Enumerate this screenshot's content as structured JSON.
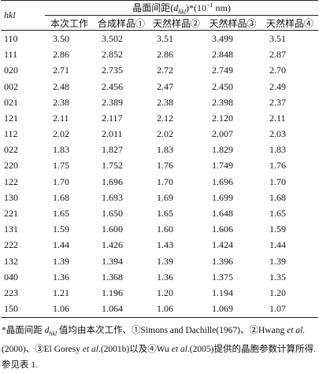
{
  "header": {
    "hkl": "hkl",
    "group": {
      "before": "晶面间距(",
      "symbol": "d",
      "sub": "hkl",
      "after": ")*(10",
      "sup": "−1",
      "unit": " nm)"
    },
    "columns": [
      "本次工作",
      "合成样品①",
      "天然样品②",
      "天然样品③",
      "天然样品④"
    ]
  },
  "table": {
    "rows": [
      [
        "110",
        "3.50",
        "3.502",
        "3.51",
        "3.499",
        "3.51"
      ],
      [
        "111",
        "2.86",
        "2.852",
        "2.86",
        "2.848",
        "2.87"
      ],
      [
        "020",
        "2.71",
        "2.735",
        "2.72",
        "2.749",
        "2.70"
      ],
      [
        "002",
        "2.48",
        "2.456",
        "2.47",
        "2.450",
        "2.49"
      ],
      [
        "021",
        "2.38",
        "2.389",
        "2.38",
        "2.398",
        "2.37"
      ],
      [
        "121",
        "2.11",
        "2.117",
        "2.12",
        "2.120",
        "2.11"
      ],
      [
        "112",
        "2.02",
        "2.011",
        "2.02",
        "2.007",
        "2.03"
      ],
      [
        "022",
        "1.83",
        "1.827",
        "1.83",
        "1.829",
        "1.83"
      ],
      [
        "220",
        "1.75",
        "1.752",
        "1.76",
        "1.749",
        "1.76"
      ],
      [
        "122",
        "1.70",
        "1.696",
        "1.70",
        "1.696",
        "1.70"
      ],
      [
        "130",
        "1.68",
        "1.693",
        "1.69",
        "1.699",
        "1.68"
      ],
      [
        "221",
        "1.65",
        "1.650",
        "1.65",
        "1.648",
        "1.65"
      ],
      [
        "131",
        "1.59",
        "1.600",
        "1.60",
        "1.606",
        "1.59"
      ],
      [
        "222",
        "1.44",
        "1.426",
        "1.43",
        "1.424",
        "1.44"
      ],
      [
        "132",
        "1.39",
        "1.394",
        "1.39",
        "1.396",
        "1.39"
      ],
      [
        "040",
        "1.36",
        "1.368",
        "1.36",
        "1.375",
        "1.35"
      ],
      [
        "223",
        "1.21",
        "1.196",
        "1.20",
        "1.194",
        "1.20"
      ],
      [
        "150",
        "1.06",
        "1.064",
        "1.06",
        "1.069",
        "1.07"
      ]
    ]
  },
  "footnote": [
    "*晶面间距 ",
    "d",
    "hkl",
    " 值均由本次工作、①Simons and Dachille(1967)、②Hwang ",
    "et al",
    ".(2000)、③El Goresy ",
    "et al",
    ".(2001b)以及④Wu ",
    "et al",
    ".(2005)提供的晶胞参数计算所得. 参见表 1."
  ]
}
